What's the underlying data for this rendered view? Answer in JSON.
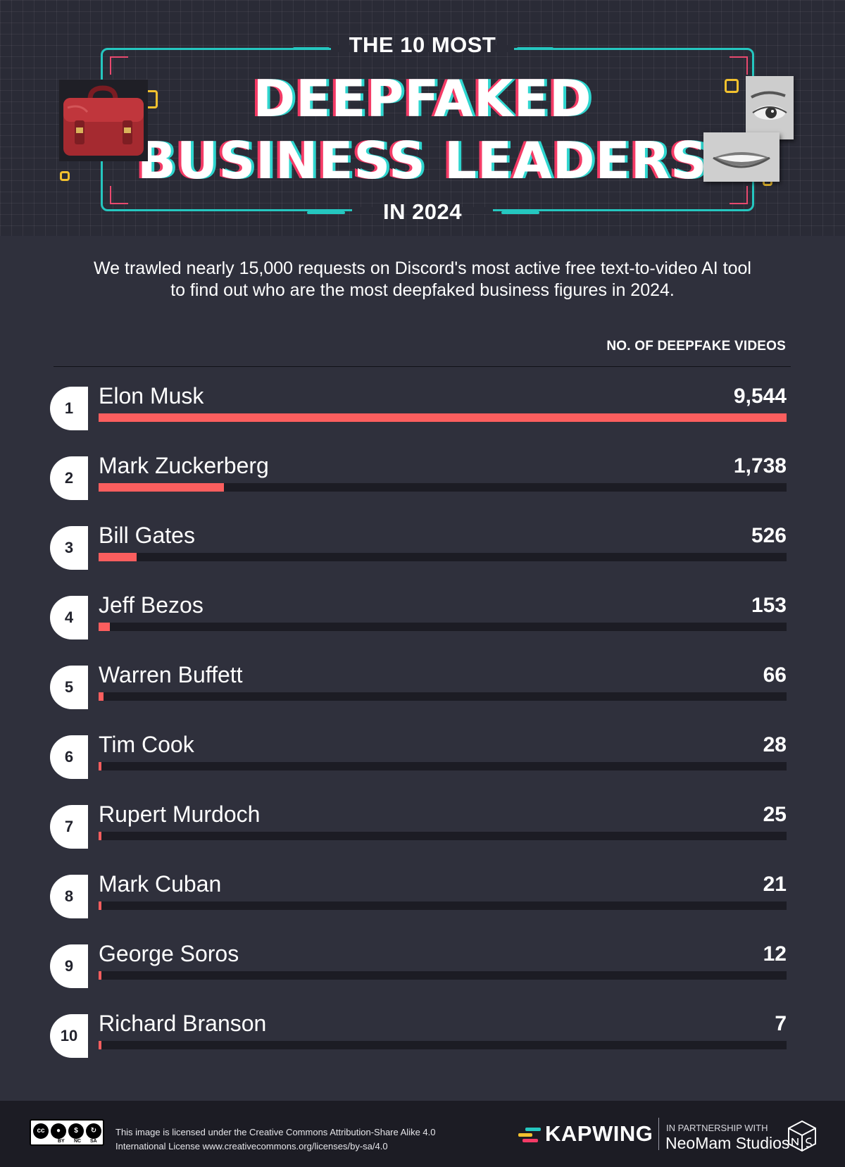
{
  "header": {
    "kicker": "THE 10 MOST",
    "title_line1": "DEEPFAKED",
    "title_line2": "BUSINESS LEADERS",
    "subtitle": "IN 2024"
  },
  "intro": {
    "line1": "We trawled nearly 15,000 requests on Discord's most active free text-to-video AI tool",
    "line2": "to find out who are the most deepfaked business figures in 2024."
  },
  "colors": {
    "bar": "#fb5e5e",
    "track": "#1c1c24",
    "accent_teal": "#25c7c0",
    "accent_pink": "#f43b66",
    "accent_yellow": "#f2c12e"
  },
  "chart_data": {
    "type": "bar",
    "orientation": "horizontal",
    "value_label": "NO. OF DEEPFAKE VIDEOS",
    "xlim": [
      0,
      9544
    ],
    "ranks": [
      "1",
      "2",
      "3",
      "4",
      "5",
      "6",
      "7",
      "8",
      "9",
      "10"
    ],
    "categories": [
      "Elon Musk",
      "Mark Zuckerberg",
      "Bill Gates",
      "Jeff Bezos",
      "Warren Buffett",
      "Tim Cook",
      "Rupert Murdoch",
      "Mark Cuban",
      "George Soros",
      "Richard Branson"
    ],
    "values": [
      9544,
      1738,
      526,
      153,
      66,
      28,
      25,
      21,
      12,
      7
    ],
    "value_labels": [
      "9,544",
      "1,738",
      "526",
      "153",
      "66",
      "28",
      "25",
      "21",
      "12",
      "7"
    ]
  },
  "footer": {
    "cc_labels": [
      "BY",
      "NC",
      "SA"
    ],
    "license_line1": "This image is licensed under the Creative Commons Attribution-Share Alike 4.0",
    "license_line2": "International License www.creativecommons.org/licenses/by-sa/4.0",
    "brand": "KAPWING",
    "partner_small": "IN PARTNERSHIP WITH",
    "partner_big": "NeoMam Studios"
  }
}
